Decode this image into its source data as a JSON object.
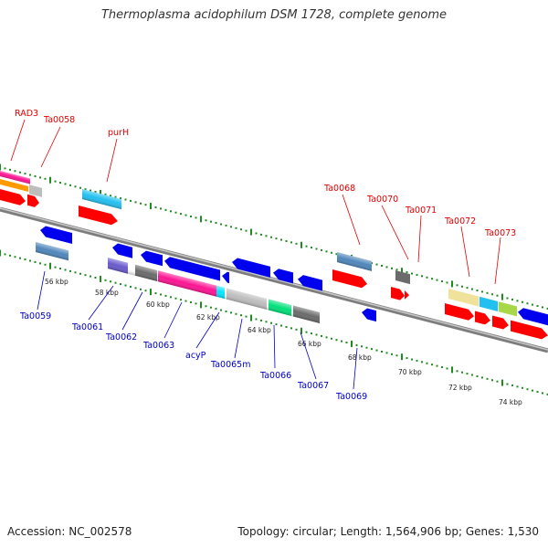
{
  "title": "Thermoplasma acidophilum DSM 1728, complete genome",
  "footer": {
    "accession": "Accession: NC_002578",
    "topology": "Topology: circular; Length: 1,564,906 bp; Genes: 1,530"
  },
  "scale_labels": [
    "56 kbp",
    "58 kbp",
    "60 kbp",
    "62 kbp",
    "64 kbp",
    "66 kbp",
    "68 kbp",
    "70 kbp",
    "72 kbp",
    "74 kbp"
  ],
  "top_labels": [
    "RAD3",
    "Ta0058",
    "purH",
    "Ta0068",
    "Ta0070",
    "Ta0071",
    "Ta0072",
    "Ta0073"
  ],
  "bottom_labels": [
    "Ta0059",
    "Ta0061",
    "Ta0062",
    "Ta0063",
    "acyP",
    "Ta0065m",
    "Ta0066",
    "Ta0067",
    "Ta0069"
  ],
  "colors": {
    "forward_label": "#e30000",
    "reverse_label": "#0000c8",
    "tick": "#1e8c1e",
    "backbone": "#8a8a8a"
  }
}
